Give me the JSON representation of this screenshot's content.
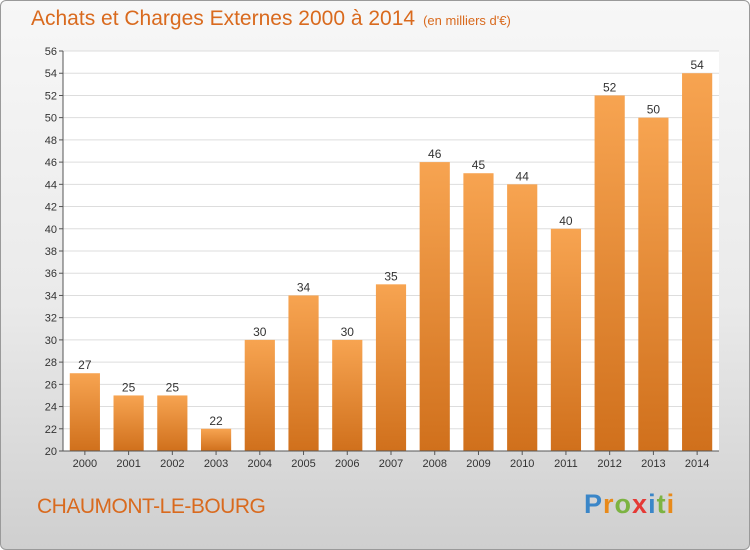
{
  "header": {
    "title": "Achats et Charges Externes 2000 à 2014",
    "unit": "(en milliers d'€)"
  },
  "footer": {
    "city": "CHAUMONT-LE-BOURG",
    "logo": [
      "P",
      "r",
      "o",
      "x",
      "i",
      "t",
      "i"
    ]
  },
  "colors": {
    "bar_top": "#f7a451",
    "bar_bottom": "#d0701c",
    "title": "#d96a1e",
    "axis": "#555555",
    "grid": "#dddddd"
  },
  "chart_data": {
    "type": "bar",
    "title": "Achats et Charges Externes 2000 à 2014",
    "subtitle": "(en milliers d'€)",
    "xlabel": "",
    "ylabel": "",
    "categories": [
      "2000",
      "2001",
      "2002",
      "2003",
      "2004",
      "2005",
      "2006",
      "2007",
      "2008",
      "2009",
      "2010",
      "2011",
      "2012",
      "2013",
      "2014"
    ],
    "values": [
      27,
      25,
      25,
      22,
      30,
      34,
      30,
      35,
      46,
      45,
      44,
      40,
      52,
      50,
      54
    ],
    "ylim": [
      20,
      56
    ],
    "yticks": [
      20,
      22,
      24,
      26,
      28,
      30,
      32,
      34,
      36,
      38,
      40,
      42,
      44,
      46,
      48,
      50,
      52,
      54,
      56
    ],
    "grid": true,
    "legend": "none"
  }
}
